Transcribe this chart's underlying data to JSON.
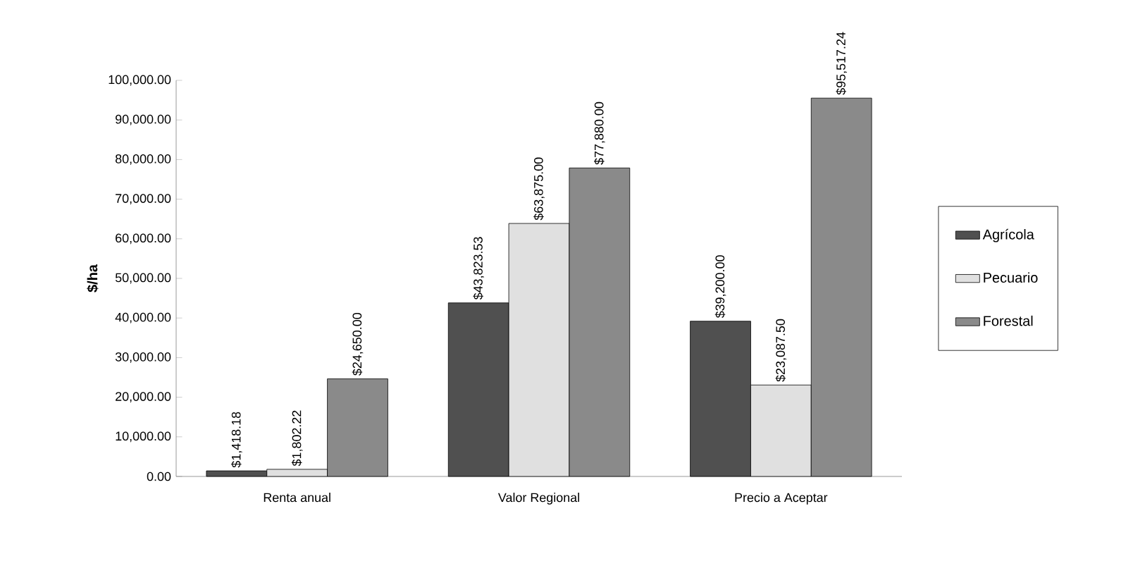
{
  "chart_data": {
    "type": "bar",
    "ylabel": "$/ha",
    "categories": [
      "Renta anual",
      "Valor Regional",
      "Precio a Aceptar"
    ],
    "series": [
      {
        "name": "Agrícola",
        "color": "#505050",
        "values": [
          1418.18,
          43823.53,
          39200.0
        ],
        "value_labels": [
          "$1,418.18",
          "$43,823.53",
          "$39,200.00"
        ]
      },
      {
        "name": "Pecuario",
        "color": "#e0e0e0",
        "values": [
          1802.22,
          63875.0,
          23087.5
        ],
        "value_labels": [
          "$1,802.22",
          "$63,875.00",
          "$23,087.50"
        ]
      },
      {
        "name": "Forestal",
        "color": "#8a8a8a",
        "values": [
          24650.0,
          77880.0,
          95517.24
        ],
        "value_labels": [
          "$24,650.00",
          "$77,880.00",
          "$95,517.24"
        ]
      }
    ],
    "ylim": [
      0,
      100000
    ],
    "yticks": [
      {
        "value": 0,
        "label": "0.00"
      },
      {
        "value": 10000,
        "label": "10,000.00"
      },
      {
        "value": 20000,
        "label": "20,000.00"
      },
      {
        "value": 30000,
        "label": "30,000.00"
      },
      {
        "value": 40000,
        "label": "40,000.00"
      },
      {
        "value": 50000,
        "label": "50,000.00"
      },
      {
        "value": 60000,
        "label": "60,000.00"
      },
      {
        "value": 70000,
        "label": "70,000.00"
      },
      {
        "value": 80000,
        "label": "80,000.00"
      },
      {
        "value": 90000,
        "label": "90,000.00"
      },
      {
        "value": 100000,
        "label": "100,000.00"
      }
    ],
    "legend": "right",
    "grid": false
  }
}
